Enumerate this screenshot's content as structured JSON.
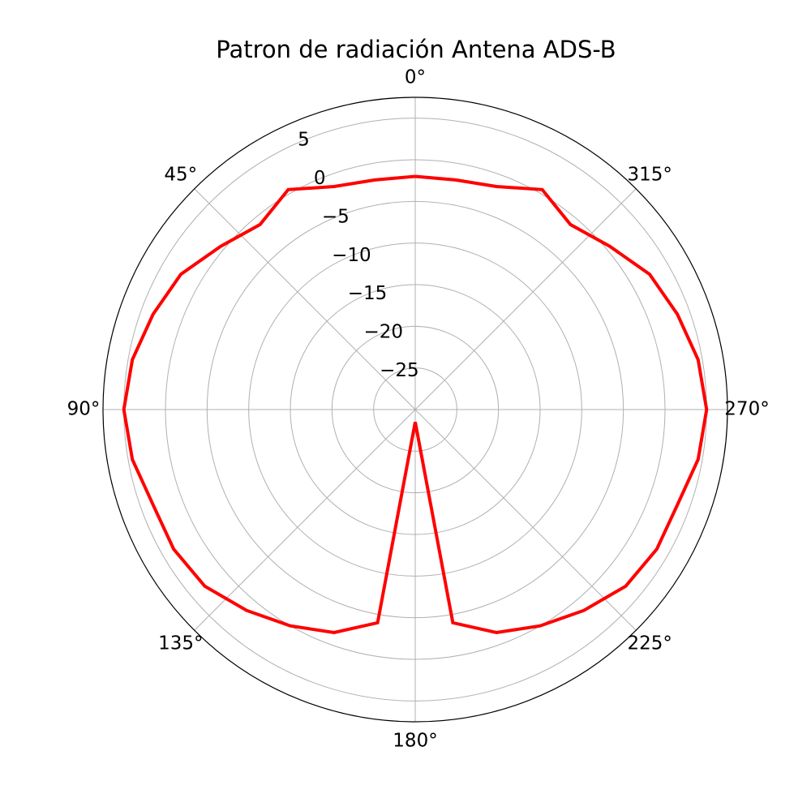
{
  "chart_data": {
    "type": "polar-line",
    "title": "Patron de radiación Antena ADS-B",
    "theta_zero_location": "N",
    "theta_direction": "counterclockwise",
    "angular_tick_labels": [
      "0°",
      "45°",
      "90°",
      "135°",
      "180°",
      "225°",
      "270°",
      "315°"
    ],
    "radial_tick_values": [
      -25,
      -20,
      -15,
      -10,
      -5,
      0,
      5
    ],
    "radial_tick_labels": [
      "−25",
      "−20",
      "−15",
      "−10",
      "−5",
      "0",
      "5"
    ],
    "rlim": [
      -30,
      7.5
    ],
    "grid": true,
    "series": [
      {
        "color": "#ff0000",
        "theta_deg": [
          0,
          10,
          20,
          30,
          40,
          50,
          60,
          70,
          80,
          90,
          100,
          110,
          120,
          130,
          140,
          150,
          160,
          170,
          180,
          190,
          200,
          210,
          220,
          230,
          240,
          250,
          260,
          270,
          280,
          290,
          300,
          310,
          320,
          330,
          340,
          350,
          360
        ],
        "r": [
          -2.0,
          -2.0,
          -1.5,
          0.5,
          -1.0,
          0.5,
          2.5,
          3.5,
          4.5,
          5.0,
          4.5,
          3.5,
          3.5,
          3.0,
          1.5,
          0.0,
          -1.5,
          -4.0,
          -28.5,
          -4.0,
          -1.5,
          0.0,
          1.5,
          3.0,
          3.5,
          3.5,
          4.5,
          5.0,
          4.5,
          3.5,
          2.5,
          0.5,
          -1.0,
          0.5,
          -1.5,
          -2.0,
          -2.0
        ]
      }
    ]
  }
}
